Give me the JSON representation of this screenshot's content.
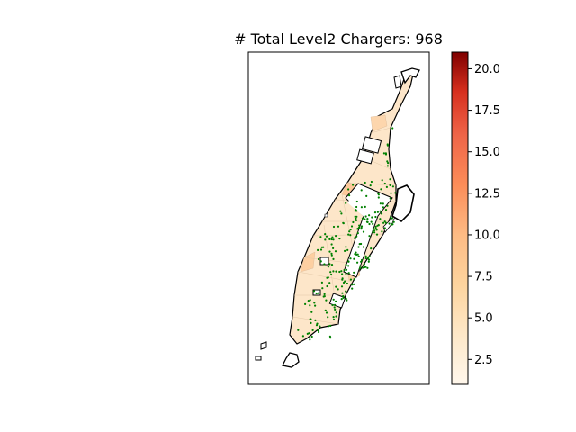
{
  "title": "# Total Level2 Chargers: 968",
  "colorbar": {
    "colormap": "OrRd",
    "range": [
      1,
      21
    ],
    "ticks": [
      {
        "value": 2.5,
        "label": "2.5"
      },
      {
        "value": 5.0,
        "label": "5.0"
      },
      {
        "value": 7.5,
        "label": "7.5"
      },
      {
        "value": 10.0,
        "label": "10.0"
      },
      {
        "value": 12.5,
        "label": "12.5"
      },
      {
        "value": 15.0,
        "label": "15.0"
      },
      {
        "value": 17.5,
        "label": "17.5"
      },
      {
        "value": 20.0,
        "label": "20.0"
      }
    ]
  },
  "colors": {
    "charger_points": "#008000",
    "tract_fill": "#fde5c8",
    "outline": "#000000",
    "colorbar_low": "#fff7ec",
    "colorbar_mid": "#fc8d59",
    "colorbar_high": "#7f0000"
  },
  "map": {
    "region": "Manhattan",
    "axes_visible": false,
    "layers": [
      "census tract choropleth (charger count)",
      "Level2 charger locations",
      "borough outline"
    ]
  }
}
